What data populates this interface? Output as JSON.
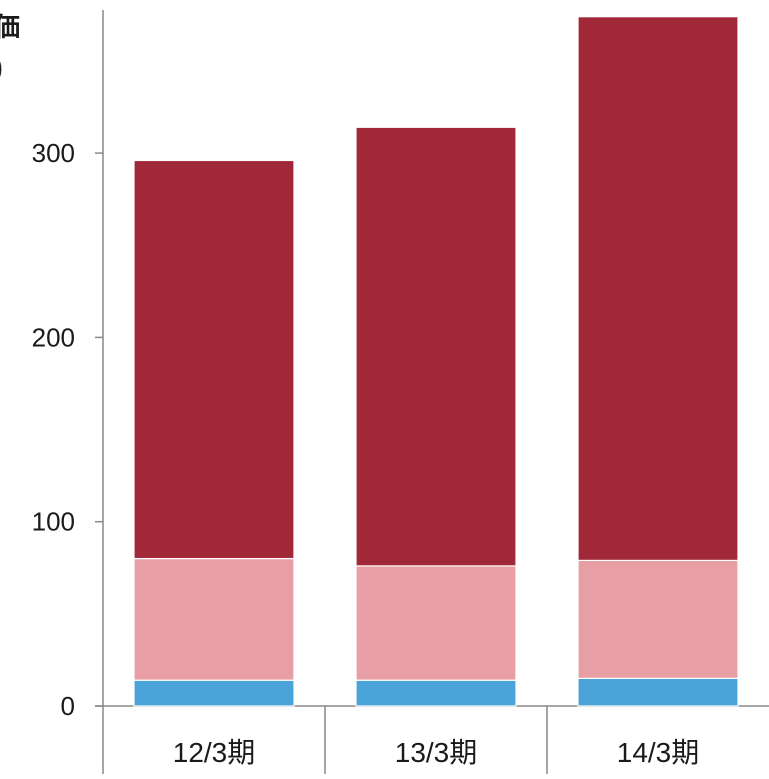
{
  "chart_data": {
    "type": "bar",
    "stacked": true,
    "ylabel": [
      "価",
      ")"
    ],
    "categories": [
      "12/3期",
      "13/3期",
      "14/3期"
    ],
    "series": [
      {
        "color": "#4aa3d8",
        "values": [
          14,
          14,
          15
        ]
      },
      {
        "color": "#e79ea5",
        "values": [
          66,
          62,
          64
        ]
      },
      {
        "color": "#a02838",
        "values": [
          216,
          238,
          295
        ]
      }
    ],
    "yticks": [
      0,
      100,
      200,
      300
    ],
    "ylim": [
      0,
      380
    ],
    "grid": false,
    "legend": "none"
  }
}
